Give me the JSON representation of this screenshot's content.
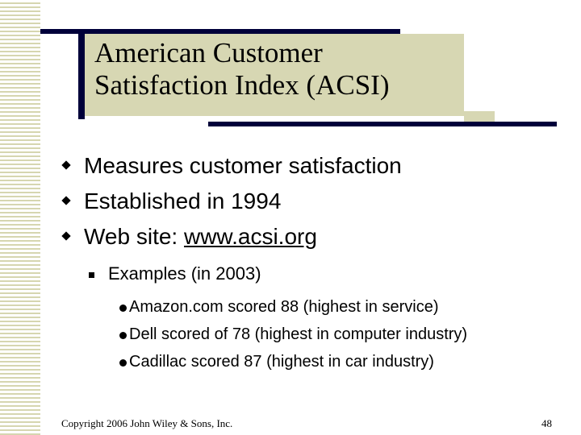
{
  "title": {
    "line1": "American Customer",
    "line2": "Satisfaction Index (ACSI)"
  },
  "bullets": [
    {
      "text": "Measures customer satisfaction"
    },
    {
      "text": "Established in 1994"
    },
    {
      "prefix": "Web site: ",
      "link": "www.acsi.org"
    }
  ],
  "sub_bullet": {
    "text": "Examples (in 2003)"
  },
  "examples": [
    {
      "text": "Amazon.com scored 88 (highest in service)"
    },
    {
      "text": "Dell scored of 78 (highest in computer industry)"
    },
    {
      "text": "Cadillac scored 87 (highest in car industry)"
    }
  ],
  "footer": {
    "copyright": "Copyright 2006 John Wiley & Sons, Inc.",
    "page_number": "48"
  },
  "colors": {
    "accent_dark": "#00003a",
    "accent_tan": "#d7d7b3"
  }
}
